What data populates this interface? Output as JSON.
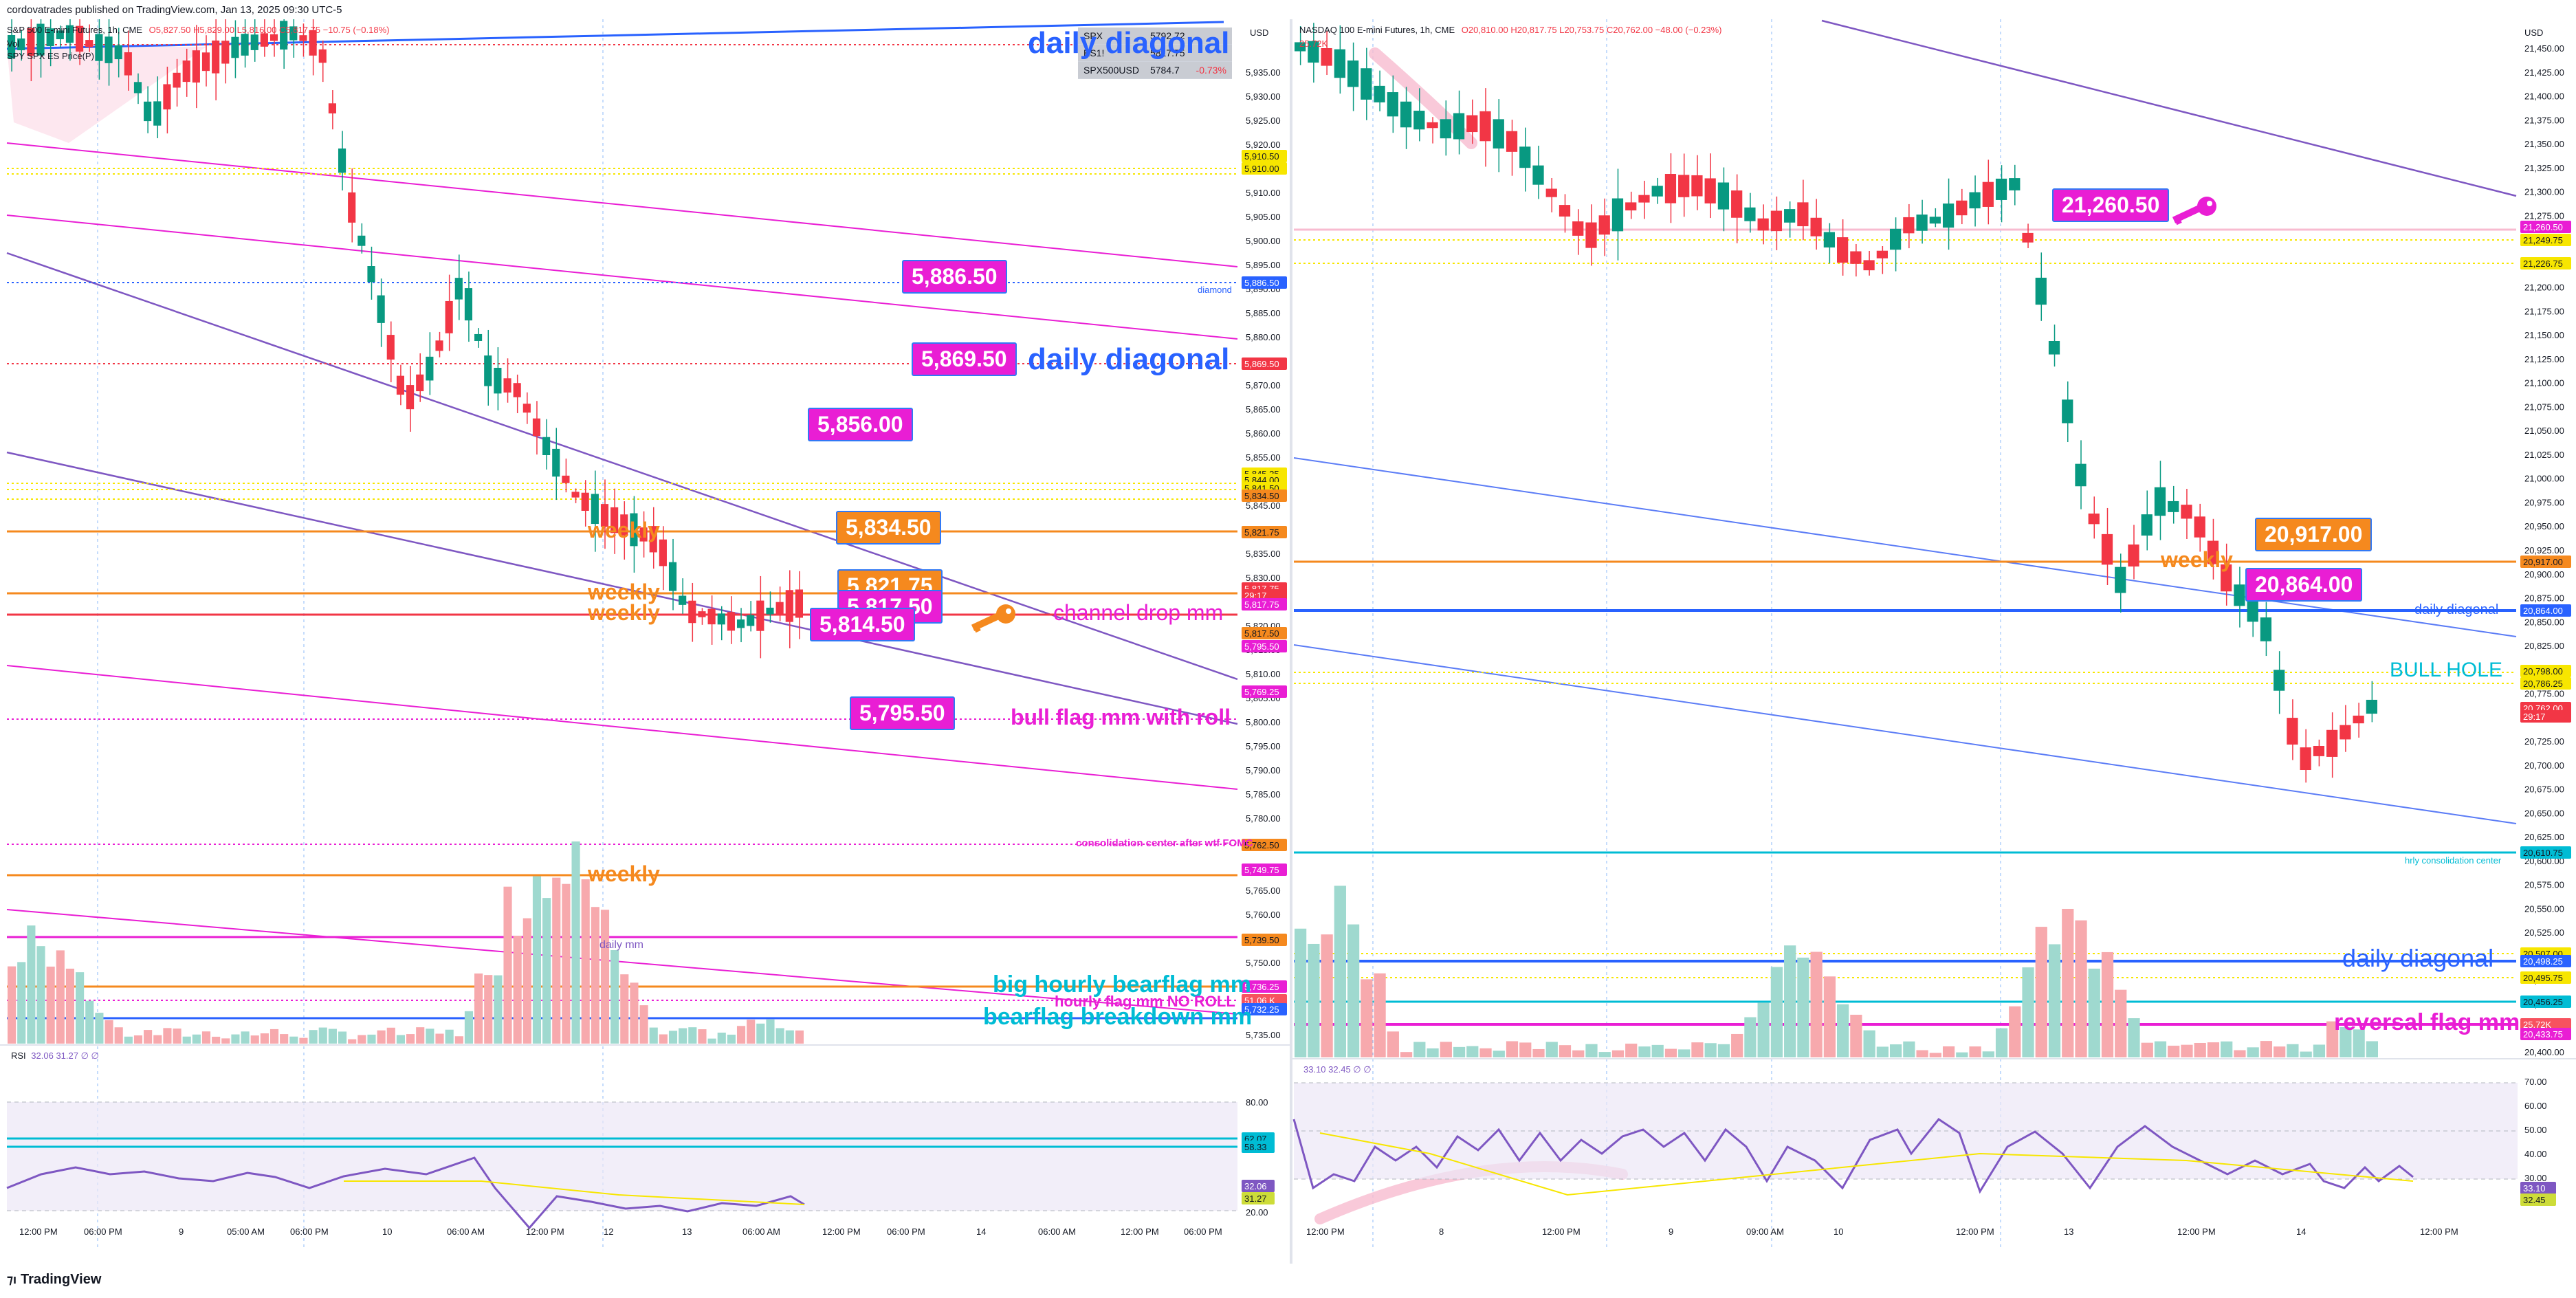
{
  "publisher": "cordovatrades published on TradingView.com, Jan 13, 2025 09:30 UTC-5",
  "footer_logo": "TradingView",
  "left": {
    "symbol": "S&P 500 E-mini Futures, 1h, CME",
    "ohlc": "O5,827.50 H5,829.00 L5,816.00 C5,817.75 −10.75 (−0.18%)",
    "indicator1": "Vol",
    "indicator2": "SPY SPX ES Price(P)",
    "currency": "USD",
    "ticker_table": [
      {
        "sym": "SPX",
        "price": "5792.72",
        "chg": ""
      },
      {
        "sym": "ES1!",
        "price": "5817.75",
        "chg": ""
      },
      {
        "sym": "SPX500USD",
        "price": "5784.7",
        "chg": "-0.73%"
      }
    ],
    "price_ticks": [
      "5,935.00",
      "5,930.00",
      "5,925.00",
      "5,920.00",
      "5,915.00",
      "5,910.00",
      "5,905.00",
      "5,900.00",
      "5,895.00",
      "5,890.00",
      "5,885.00",
      "5,880.00",
      "5,875.00",
      "5,870.00",
      "5,865.00",
      "5,860.00",
      "5,855.00",
      "5,850.00",
      "5,845.00",
      "5,840.00",
      "5,835.00",
      "5,830.00",
      "5,825.00",
      "5,820.00",
      "5,815.00",
      "5,810.00",
      "5,805.00",
      "5,800.00",
      "5,795.00",
      "5,790.00",
      "5,785.00",
      "5,780.00",
      "5,775.00",
      "5,770.00",
      "5,765.00",
      "5,760.00",
      "5,755.00",
      "5,750.00",
      "5,745.00",
      "5,740.00",
      "5,735.00"
    ],
    "price_tags": [
      {
        "text": "5,910.50",
        "bg": "#f7e600",
        "fg": "#131722"
      },
      {
        "text": "5,910.00",
        "bg": "#f7e600",
        "fg": "#131722"
      },
      {
        "text": "5,886.50",
        "bg": "#2962ff",
        "fg": "#ffffff"
      },
      {
        "text": "5,869.50",
        "bg": "#f23645",
        "fg": "#ffffff"
      },
      {
        "text": "5,845.25",
        "bg": "#f7e600",
        "fg": "#131722"
      },
      {
        "text": "5,844.00",
        "bg": "#f7e600",
        "fg": "#131722"
      },
      {
        "text": "5,841.50",
        "bg": "#f7e600",
        "fg": "#131722"
      },
      {
        "text": "5,834.50",
        "bg": "#f5891e",
        "fg": "#131722"
      },
      {
        "text": "5,821.75",
        "bg": "#f5891e",
        "fg": "#131722"
      },
      {
        "text": "5,817.75",
        "bg": "#f23645",
        "fg": "#ffffff"
      },
      {
        "text": "29:17",
        "bg": "#f23645",
        "fg": "#ffffff"
      },
      {
        "text": "5,817.75",
        "bg": "#e91ed4",
        "fg": "#ffffff"
      },
      {
        "text": "5,817.50",
        "bg": "#f5891e",
        "fg": "#131722"
      },
      {
        "text": "5,795.50",
        "bg": "#e91ed4",
        "fg": "#ffffff"
      },
      {
        "text": "5,769.25",
        "bg": "#e91ed4",
        "fg": "#ffffff"
      },
      {
        "text": "5,762.50",
        "bg": "#f5891e",
        "fg": "#131722"
      },
      {
        "text": "5,749.75",
        "bg": "#e91ed4",
        "fg": "#ffffff"
      },
      {
        "text": "5,739.50",
        "bg": "#f5891e",
        "fg": "#131722"
      },
      {
        "text": "5,736.25",
        "bg": "#e91ed4",
        "fg": "#ffffff"
      },
      {
        "text": "51.06 K",
        "bg": "#f7525f",
        "fg": "#ffffff"
      },
      {
        "text": "5,732.25",
        "bg": "#2962ff",
        "fg": "#ffffff"
      }
    ],
    "callouts": [
      {
        "text": "5,886.50",
        "bg": "#e91ed4"
      },
      {
        "text": "5,869.50",
        "bg": "#e91ed4"
      },
      {
        "text": "5,856.00",
        "bg": "#e91ed4"
      },
      {
        "text": "5,834.50",
        "bg": "#f5891e"
      },
      {
        "text": "5,821.75",
        "bg": "#f5891e"
      },
      {
        "text": "5,817.50",
        "bg": "#e91ed4"
      },
      {
        "text": "5,814.50",
        "bg": "#e91ed4"
      },
      {
        "text": "5,795.50",
        "bg": "#e91ed4"
      }
    ],
    "labels": {
      "daily_diag1": "daily diagonal",
      "daily_diag2": "daily diagonal",
      "weekly1": "weekly",
      "weekly2": "weekly",
      "weekly3": "weekly",
      "weekly4": "weekly",
      "channel_drop": "channel drop mm",
      "bull_flag": "bull flag mm with roll",
      "consolidation": "consolidation center after wtf FOMC",
      "daily_mm": "daily mm",
      "big_hourly": "big hourly bearflag mm",
      "hourly_flag": "hourly flag mm NO ROLL",
      "bearflag_breakdown": "bearflag breakdown mm",
      "diamond": "diamond"
    },
    "rsi_label": "RSI",
    "rsi_values": "32.06  31.27  ∅  ∅",
    "rsi_ticks": [
      "80.00",
      "40.00",
      "20.00"
    ],
    "rsi_tags": [
      {
        "text": "62.07",
        "bg": "#00bcd4",
        "fg": "#131722"
      },
      {
        "text": "58.33",
        "bg": "#00bcd4",
        "fg": "#131722"
      },
      {
        "text": "32.06",
        "bg": "#7e57c2",
        "fg": "#ffffff"
      },
      {
        "text": "31.27",
        "bg": "#cddc39",
        "fg": "#131722"
      }
    ],
    "time_ticks": [
      "12:00 PM",
      "06:00 PM",
      "9",
      "05:00 AM",
      "06:00 PM",
      "10",
      "06:00 AM",
      "12:00 PM",
      "12",
      "13",
      "06:00 AM",
      "12:00 PM",
      "06:00 PM",
      "14",
      "06:00 AM",
      "12:00 PM",
      "06:00 PM"
    ]
  },
  "right": {
    "symbol": "NASDAQ 100 E-mini Futures, 1h, CME",
    "ohlc": "O20,810.00 H20,817.75 L20,753.75 C20,762.00 −48.00 (−0.23%)",
    "currency": "USD",
    "vol_val": "25.72K",
    "price_ticks": [
      "21,450.00",
      "21,425.00",
      "21,400.00",
      "21,375.00",
      "21,350.00",
      "21,325.00",
      "21,300.00",
      "21,275.00",
      "21,250.00",
      "21,225.00",
      "21,200.00",
      "21,175.00",
      "21,150.00",
      "21,125.00",
      "21,100.00",
      "21,075.00",
      "21,050.00",
      "21,025.00",
      "21,000.00",
      "20,975.00",
      "20,950.00",
      "20,925.00",
      "20,900.00",
      "20,875.00",
      "20,850.00",
      "20,825.00",
      "20,800.00",
      "20,775.00",
      "20,750.00",
      "20,725.00",
      "20,700.00",
      "20,675.00",
      "20,650.00",
      "20,625.00",
      "20,600.00",
      "20,575.00",
      "20,550.00",
      "20,525.00",
      "20,500.00",
      "20,475.00",
      "20,450.00",
      "20,425.00",
      "20,400.00"
    ],
    "price_tags": [
      {
        "text": "21,260.50",
        "bg": "#e91ed4",
        "fg": "#ffffff"
      },
      {
        "text": "21,249.75",
        "bg": "#f7e600",
        "fg": "#131722"
      },
      {
        "text": "21,226.75",
        "bg": "#f7e600",
        "fg": "#131722"
      },
      {
        "text": "20,917.00",
        "bg": "#f5891e",
        "fg": "#131722"
      },
      {
        "text": "20,864.00",
        "bg": "#2962ff",
        "fg": "#ffffff"
      },
      {
        "text": "20,798.00",
        "bg": "#f7e600",
        "fg": "#131722"
      },
      {
        "text": "20,786.25",
        "bg": "#f7e600",
        "fg": "#131722"
      },
      {
        "text": "20,762.00",
        "bg": "#f23645",
        "fg": "#ffffff"
      },
      {
        "text": "29:17",
        "bg": "#f23645",
        "fg": "#ffffff"
      },
      {
        "text": "20,610.75",
        "bg": "#00bcd4",
        "fg": "#131722"
      },
      {
        "text": "20,507.00",
        "bg": "#f7e600",
        "fg": "#131722"
      },
      {
        "text": "20,498.25",
        "bg": "#2962ff",
        "fg": "#ffffff"
      },
      {
        "text": "20,495.75",
        "bg": "#f7e600",
        "fg": "#131722"
      },
      {
        "text": "20,456.25",
        "bg": "#00bcd4",
        "fg": "#131722"
      },
      {
        "text": "25.72K",
        "bg": "#f7525f",
        "fg": "#ffffff"
      },
      {
        "text": "20,433.75",
        "bg": "#e91ed4",
        "fg": "#ffffff"
      }
    ],
    "callouts": [
      {
        "text": "21,260.50",
        "bg": "#e91ed4"
      },
      {
        "text": "20,917.00",
        "bg": "#f5891e"
      },
      {
        "text": "20,864.00",
        "bg": "#e91ed4"
      }
    ],
    "labels": {
      "weekly": "weekly",
      "daily_diag_small": "daily diagonal",
      "bull_hole": "BULL HOLE",
      "hrly_consol": "hrly consolidation center",
      "daily_diag_big": "daily diagonal",
      "reversal": "reversal flag mm"
    },
    "rsi_values": "33.10  32.45  ∅  ∅",
    "rsi_ticks": [
      "70.00",
      "60.00",
      "50.00",
      "40.00",
      "30.00",
      "20.00"
    ],
    "rsi_tags": [
      {
        "text": "33.10",
        "bg": "#7e57c2",
        "fg": "#ffffff"
      },
      {
        "text": "32.45",
        "bg": "#cddc39",
        "fg": "#131722"
      }
    ],
    "time_ticks": [
      "12:00 PM",
      "8",
      "12:00 PM",
      "9",
      "09:00 AM",
      "10",
      "12:00 PM",
      "13",
      "12:00 PM",
      "14",
      "12:00 PM"
    ]
  }
}
